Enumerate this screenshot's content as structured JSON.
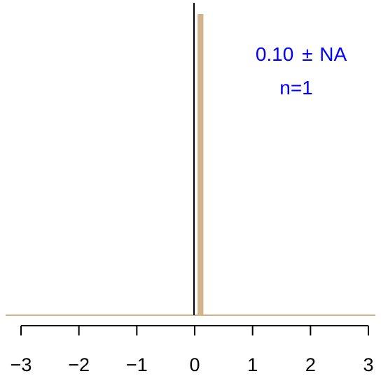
{
  "chart_data": {
    "type": "bar",
    "title": "",
    "xlabel": "",
    "ylabel": "",
    "xlim": [
      -3,
      3
    ],
    "x_ticks": [
      -3,
      -2,
      -1,
      0,
      1,
      2,
      3
    ],
    "x_tick_labels": [
      "−3",
      "−2",
      "−1",
      "0",
      "1",
      "2",
      "3"
    ],
    "bars": [
      {
        "x_start": 0.05,
        "x_end": 0.15,
        "value": 1
      }
    ],
    "ylim": [
      0,
      1.0
    ],
    "grid": false,
    "zero_reference_line": true,
    "annotation": {
      "mean_text": "0.10",
      "pm_symbol": "±",
      "sd_text": "NA",
      "n_text": "n=1",
      "position": "top-right"
    }
  },
  "colors": {
    "bar": "#D2B48C",
    "baseline": "#D2B48C",
    "reference_line": "#000000",
    "axis": "#000000",
    "annotation": "#0000FF"
  }
}
